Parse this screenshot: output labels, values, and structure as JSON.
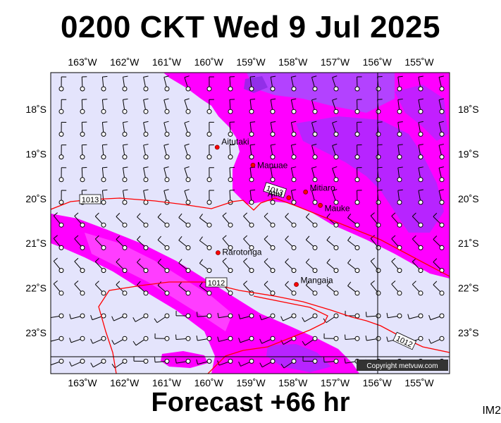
{
  "title": "0200 CKT Wed 9 Jul 2025",
  "subtitle": "Forecast +66 hr",
  "corner_label": "IM2",
  "copyright": "Copyright metvuw.com",
  "lon_labels": [
    {
      "lon": -163,
      "text": "163˚W"
    },
    {
      "lon": -162,
      "text": "162˚W"
    },
    {
      "lon": -161,
      "text": "161˚W"
    },
    {
      "lon": -160,
      "text": "160˚W"
    },
    {
      "lon": -159,
      "text": "159˚W"
    },
    {
      "lon": -158,
      "text": "158˚W"
    },
    {
      "lon": -157,
      "text": "157˚W"
    },
    {
      "lon": -156,
      "text": "156˚W"
    },
    {
      "lon": -155,
      "text": "155˚W"
    }
  ],
  "lat_labels": [
    {
      "lat": -18,
      "text": "18˚S"
    },
    {
      "lat": -19,
      "text": "19˚S"
    },
    {
      "lat": -20,
      "text": "20˚S"
    },
    {
      "lat": -21,
      "text": "21˚S"
    },
    {
      "lat": -22,
      "text": "22˚S"
    },
    {
      "lat": -23,
      "text": "23˚S"
    }
  ],
  "places": [
    {
      "name": "Aitutaki",
      "lon": -159.8,
      "lat": -18.85
    },
    {
      "name": "Manuae",
      "lon": -158.95,
      "lat": -19.25
    },
    {
      "name": "Atiu",
      "lon": -158.1,
      "lat": -19.98
    },
    {
      "name": "Mitiaro",
      "lon": -157.7,
      "lat": -19.85
    },
    {
      "name": "Mauke",
      "lon": -157.35,
      "lat": -20.15
    },
    {
      "name": "Rarotonga",
      "lon": -159.78,
      "lat": -21.21
    },
    {
      "name": "Mangaia",
      "lon": -157.92,
      "lat": -21.92
    }
  ],
  "isobar_labels": [
    "1013",
    "1013",
    "1012",
    "1012"
  ],
  "colors": {
    "background": "#e4e4fc",
    "rain_light": "#ff00ff",
    "rain_heavy": "#9933ff",
    "isobar": "#ff0000",
    "grid": "#000000"
  }
}
